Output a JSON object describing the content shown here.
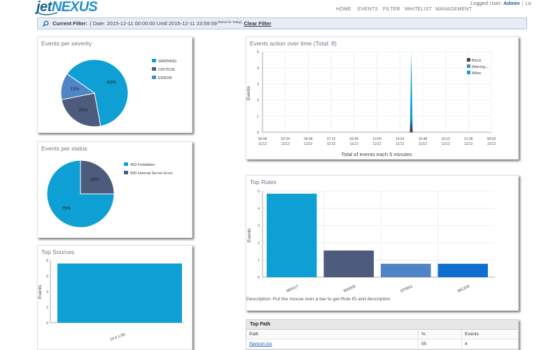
{
  "header": {
    "logo_part1": "jet",
    "logo_part2": "NEXUS",
    "nav": [
      "HOME",
      "EVENTS",
      "FILTER",
      "WHITELIST",
      "MANAGEMENT"
    ],
    "logged_user_label": "Logged User:",
    "logged_user": "Admin",
    "separator": "|",
    "logout_fragment": "Lo"
  },
  "filter": {
    "label": "Current Filter:",
    "value": "{ Date: 2015-12-11 00:00:00 Until 2015-12-11 23:59:59",
    "reset_label": "(Reset for Today)",
    "clear_label": "Clear Filter"
  },
  "severity": {
    "title": "Events per severity",
    "chart_data": {
      "type": "pie",
      "slices": [
        {
          "label": "WARNING",
          "percent": 63,
          "color": "#0e9fd4"
        },
        {
          "label": "CRITICAL",
          "percent": 25,
          "color": "#4d5b7c"
        },
        {
          "label": "ERROR",
          "percent": 13,
          "color": "#4f84c6"
        }
      ]
    }
  },
  "status": {
    "title": "Events per status",
    "chart_data": {
      "type": "pie",
      "slices": [
        {
          "label": "403 Forbidden",
          "percent": 75,
          "color": "#0e9fd4"
        },
        {
          "label": "500 Internal Server Error",
          "percent": 25,
          "color": "#4d5b7c"
        }
      ]
    }
  },
  "sources": {
    "title": "Top Sources",
    "chart_data": {
      "type": "bar",
      "categories": [
        "10.4.1.99"
      ],
      "values": [
        7.6
      ],
      "ylabel": "Events",
      "ylim": [
        0,
        8
      ],
      "yticks": [
        "0",
        "2",
        "4",
        "6",
        "8"
      ],
      "colors": [
        "#0e9fd4"
      ]
    }
  },
  "timeline": {
    "title": "Events action over time (Total: 8)",
    "chart_data": {
      "type": "area",
      "x_ticks": [
        [
          "00:08",
          "11/12"
        ],
        [
          "02:24",
          "11/12"
        ],
        [
          "04:48",
          "11/12"
        ],
        [
          "07:12",
          "11/12"
        ],
        [
          "09:36",
          "11/12"
        ],
        [
          "12:00",
          "11/12"
        ],
        [
          "14:24",
          "11/12"
        ],
        [
          "16:48",
          "11/12"
        ],
        [
          "19:12",
          "11/12"
        ],
        [
          "21:36",
          "11/12"
        ],
        [
          "00:00",
          "12/12"
        ]
      ],
      "ylim": [
        0,
        5
      ],
      "yticks": [
        "0",
        "1",
        "2",
        "3",
        "4",
        "5"
      ],
      "ylabel": "Events",
      "xlabel": "Total of events each 5 minutes",
      "series": [
        {
          "name": "Block",
          "color": "#3a4258",
          "value_at_spike": 1
        },
        {
          "name": "Warning",
          "color": "#4f84c6",
          "value_at_spike": 0
        },
        {
          "name": "Allow",
          "color": "#0e9fd4",
          "value_at_spike": 5
        }
      ],
      "legend_labels": [
        "Block",
        "Warnng...",
        "Allow"
      ],
      "spike_fraction": 0.65
    }
  },
  "toprules": {
    "title": "Top Rules",
    "chart_data": {
      "type": "bar",
      "categories": [
        "960017",
        "950005",
        "970901",
        "981205"
      ],
      "values": [
        4.85,
        1.55,
        0.78,
        0.78
      ],
      "colors": [
        "#0e9fd4",
        "#4d5b7c",
        "#4f84c6",
        "#0f6fcf"
      ],
      "ylabel": "Events",
      "ylim": [
        0,
        5
      ],
      "yticks": [
        "0",
        "1",
        "2",
        "3",
        "4",
        "5"
      ]
    },
    "description": "Description: Put the mouse over a bar to get Rule ID and description"
  },
  "toppath": {
    "title": "Top Path",
    "columns": [
      "Path",
      "%",
      "Events"
    ],
    "rows": [
      {
        "path": "/favicon.ico",
        "percent": "50",
        "events": "4"
      }
    ]
  }
}
